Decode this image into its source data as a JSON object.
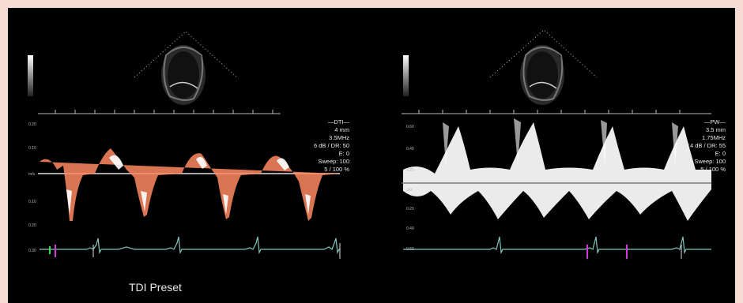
{
  "caption": "TDI Preset",
  "left_panel": {
    "mode": "DTI",
    "readout": [
      "—DTI—",
      "4 mm",
      "3.5MHz",
      "6 dB / DR: 50",
      "E: 0",
      "Sweep: 100",
      "5 / 100 %"
    ],
    "scale_labels": [
      "0.20",
      "0.10",
      "m/s",
      "0.10",
      "0.20",
      "0.30"
    ]
  },
  "right_panel": {
    "mode": "PW",
    "readout": [
      "—PW—",
      "3.5 mm",
      "1.75MHz",
      "14 dB / DR: 55",
      "E: 0",
      "Sweep: 100",
      "5 / 100 %"
    ],
    "scale_labels": [
      "0.60",
      "0.40",
      "0.20",
      "m/s",
      "0.20",
      "0.40",
      "0.60"
    ]
  },
  "colors": {
    "background": "#000000",
    "page_border": "#f6dcd2",
    "tdi_signal": "#ff9f7a",
    "pw_signal": "#ffffff",
    "ecg_trace": "#7fc7bf",
    "marker_magenta": "#d13ad6",
    "marker_green": "#3cdc5a"
  }
}
